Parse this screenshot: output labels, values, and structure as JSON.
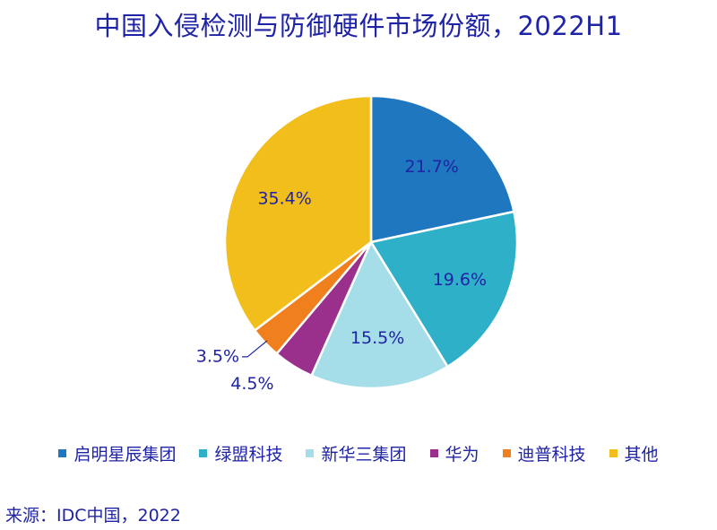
{
  "title": "中国入侵检测与防御硬件市场份额，2022H1",
  "source": "来源：IDC中国，2022",
  "chart_data": {
    "type": "pie",
    "title": "中国入侵检测与防御硬件市场份额，2022H1",
    "legend_position": "bottom",
    "unit": "%",
    "slices": [
      {
        "name": "启明星辰集团",
        "value": 21.7,
        "label": "21.7%",
        "color": "#1f77bf"
      },
      {
        "name": "绿盟科技",
        "value": 19.6,
        "label": "19.6%",
        "color": "#2fb0c9"
      },
      {
        "name": "新华三集团",
        "value": 15.5,
        "label": "15.5%",
        "color": "#a5dde8"
      },
      {
        "name": "华为",
        "value": 4.5,
        "label": "4.5%",
        "color": "#9a2f8c"
      },
      {
        "name": "迪普科技",
        "value": 3.5,
        "label": "3.5%",
        "color": "#f07f1e"
      },
      {
        "name": "其他",
        "value": 35.4,
        "label": "35.4%",
        "color": "#f2be1c"
      }
    ]
  }
}
